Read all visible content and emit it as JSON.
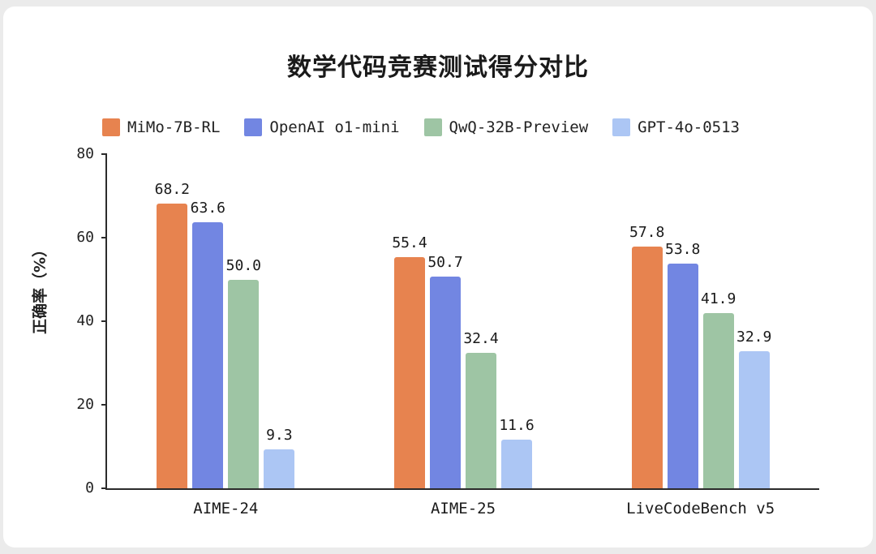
{
  "chart_data": {
    "type": "bar",
    "title": "数学代码竞赛测试得分对比",
    "ylabel": "正确率（%）",
    "xlabel": "",
    "ylim": [
      0,
      80
    ],
    "yticks": [
      0,
      20,
      40,
      60,
      80
    ],
    "grid": false,
    "legend_position": "top",
    "categories": [
      "AIME-24",
      "AIME-25",
      "LiveCodeBench v5"
    ],
    "series": [
      {
        "name": "MiMo-7B-RL",
        "color": "#E7834F",
        "values": [
          68.2,
          55.4,
          57.8
        ]
      },
      {
        "name": "OpenAI o1-mini",
        "color": "#7286E2",
        "values": [
          63.6,
          50.7,
          53.8
        ]
      },
      {
        "name": "QwQ-32B-Preview",
        "color": "#9EC5A4",
        "values": [
          50.0,
          32.4,
          41.9
        ]
      },
      {
        "name": "GPT-4o-0513",
        "color": "#ACC6F4",
        "values": [
          9.3,
          11.6,
          32.9
        ]
      }
    ]
  }
}
